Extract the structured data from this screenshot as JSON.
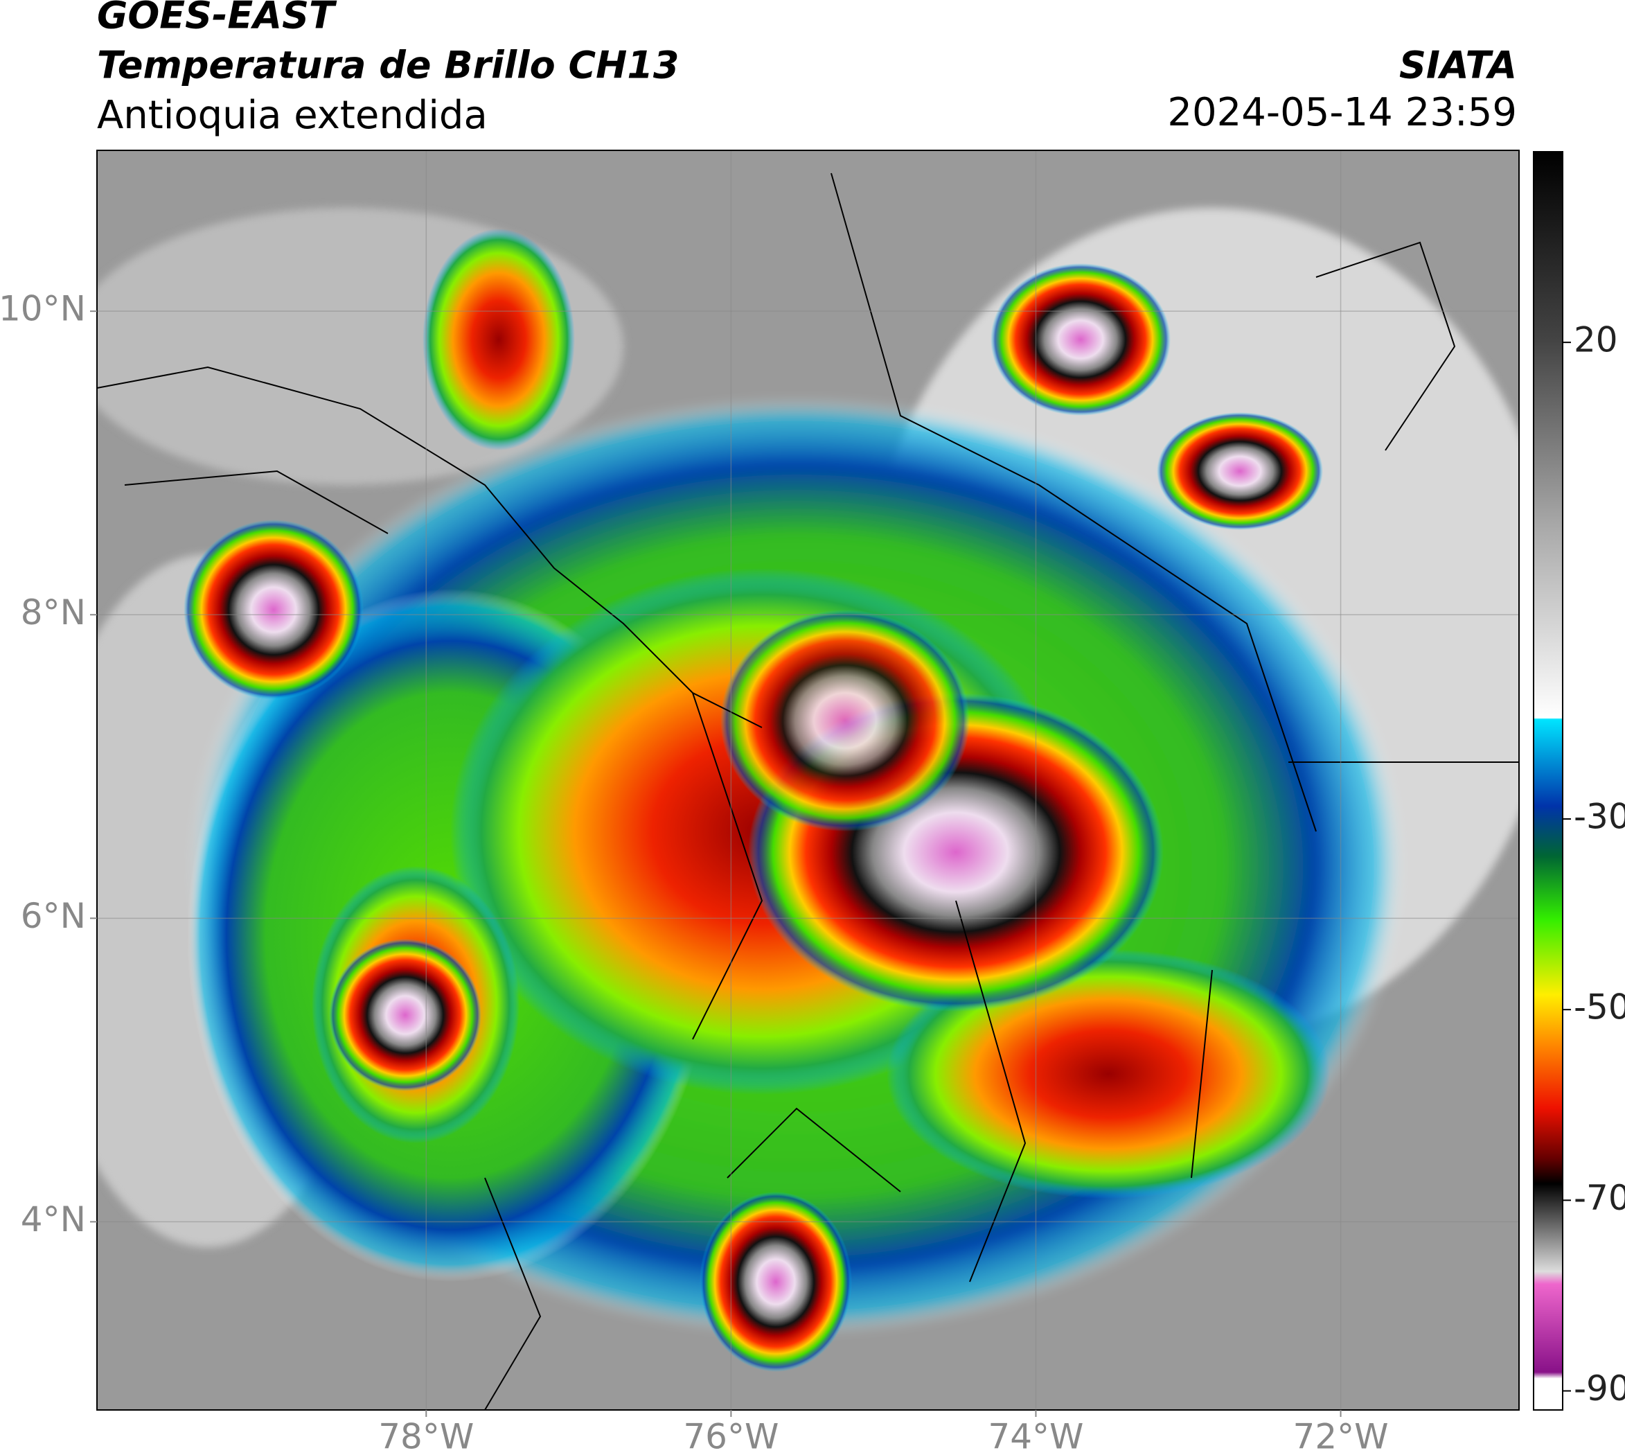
{
  "header": {
    "title": "GOES-EAST",
    "subtitle": "Temperatura de Brillo CH13",
    "region": "Antioquia extendida",
    "source": "SIATA",
    "timestamp": "2024-05-14 23:59"
  },
  "map": {
    "xlim": [
      -80.16,
      -70.83
    ],
    "ylim": [
      2.76,
      11.06
    ],
    "xticks": [
      {
        "value": -78,
        "label": "78°W"
      },
      {
        "value": -76,
        "label": "76°W"
      },
      {
        "value": -74,
        "label": "74°W"
      },
      {
        "value": -72,
        "label": "72°W"
      }
    ],
    "yticks": [
      {
        "value": 4,
        "label": "4°N"
      },
      {
        "value": 6,
        "label": "6°N"
      },
      {
        "value": 8,
        "label": "8°N"
      },
      {
        "value": 10,
        "label": "10°N"
      }
    ],
    "grid": true
  },
  "colorbar": {
    "clim": [
      -92,
      40
    ],
    "ticks": [
      20,
      -30,
      -50,
      -70,
      -90
    ]
  }
}
